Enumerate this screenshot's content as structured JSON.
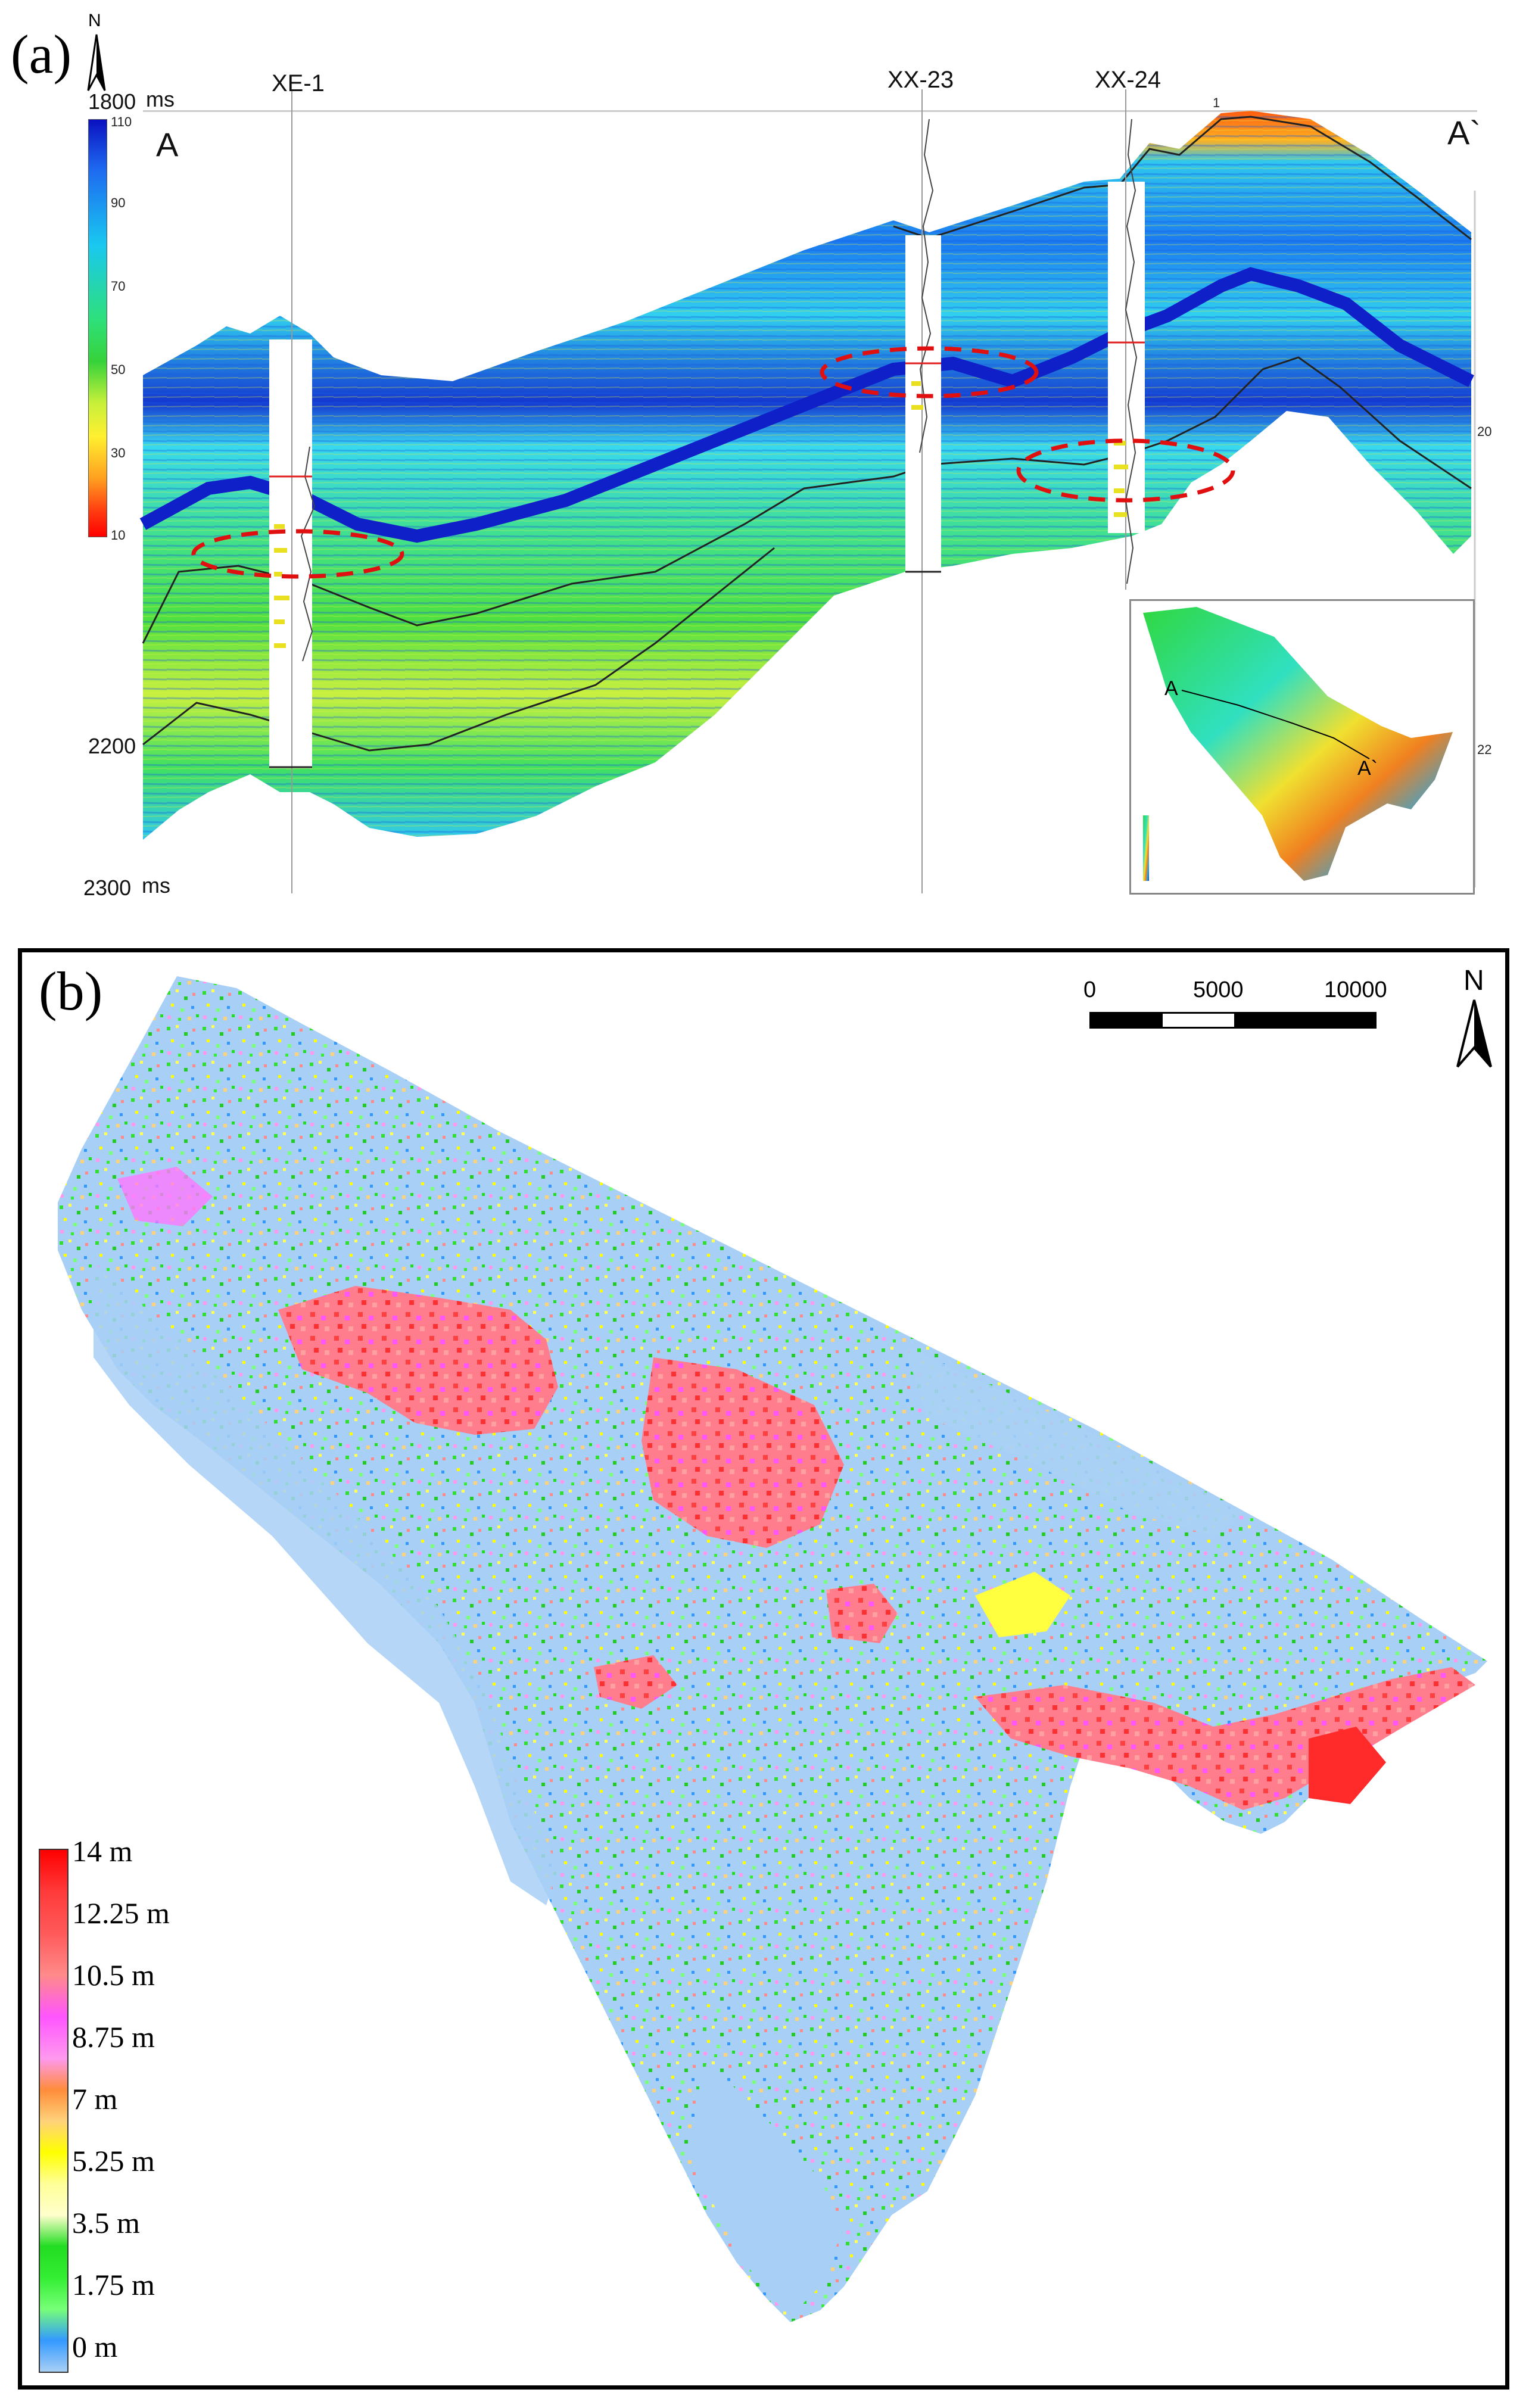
{
  "panel_a": {
    "label": "(a)",
    "north": "N",
    "unit_top": "ms",
    "time_top": "1800",
    "time_mid": "2200",
    "time_bottom": "2300",
    "unit_bottom": "ms",
    "section_start": "A",
    "section_end": "A`",
    "wells": [
      "XE-1",
      "XX-23",
      "XX-24"
    ],
    "colorbar_ticks": [
      "110",
      "90",
      "70",
      "50",
      "30",
      "10"
    ],
    "colorbar_colors": [
      "#0a10c0",
      "#1e6af0",
      "#19c8f0",
      "#2ee07a",
      "#36d23a",
      "#c8f03a",
      "#fff030",
      "#ffa020",
      "#ff3a10",
      "#ff0000"
    ],
    "inset": {
      "label_a": "A",
      "label_b": "A`"
    },
    "edge_ticks": {
      "right_top": "1",
      "right_mid": "20",
      "right_low": "22"
    }
  },
  "panel_b": {
    "label": "(b)",
    "north": "N",
    "scale_labels": [
      "0",
      "5000",
      "10000"
    ],
    "legend": [
      {
        "label": "14 m",
        "color": "#ff0000"
      },
      {
        "label": "12.25 m",
        "color": "#ff5050"
      },
      {
        "label": "10.5 m",
        "color": "#ff8a8a"
      },
      {
        "label": "8.75 m",
        "color": "#ff55ff"
      },
      {
        "label": "7 m",
        "color": "#ff99ee"
      },
      {
        "label": "5.25 m",
        "color": "#ff8c3a"
      },
      {
        "label": "3.5 m",
        "color": "#ffd27a"
      },
      {
        "label": "1.75 m",
        "color": "#ffff00"
      },
      {
        "label": "0 m",
        "color": "#a8cff5"
      }
    ],
    "legend_extra_colors": [
      "#ffff99",
      "#ffffcc",
      "#22dd22",
      "#33ee33",
      "#77ff77",
      "#3399ff"
    ]
  }
}
